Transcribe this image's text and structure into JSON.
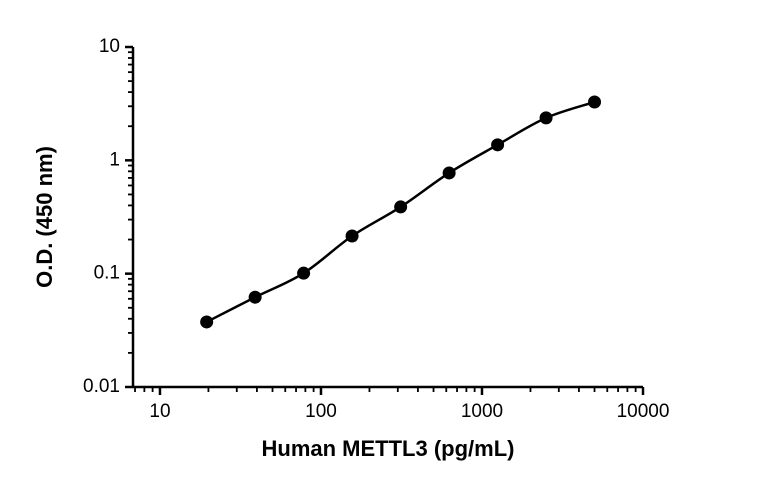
{
  "chart_data": {
    "type": "scatter",
    "x_label": "Human METTL3 (pg/mL)",
    "y_label": "O.D. (450 nm)",
    "series": [
      {
        "x": [
          19.5,
          39,
          78,
          156,
          312.5,
          625,
          1250,
          2500,
          5000
        ],
        "values": [
          0.0375,
          0.062,
          0.101,
          0.215,
          0.388,
          0.774,
          1.37,
          2.37,
          3.27
        ],
        "color": "#000000"
      }
    ],
    "xlim": [
      6.8,
      10000
    ],
    "xticks": [
      10,
      100,
      1000,
      10000
    ],
    "ylim": [
      0.01,
      10
    ],
    "yticks": [
      0.01,
      0.1,
      1,
      10
    ],
    "x_log": true,
    "y_log": true,
    "minor_ticks": true,
    "fit_curve": true
  }
}
